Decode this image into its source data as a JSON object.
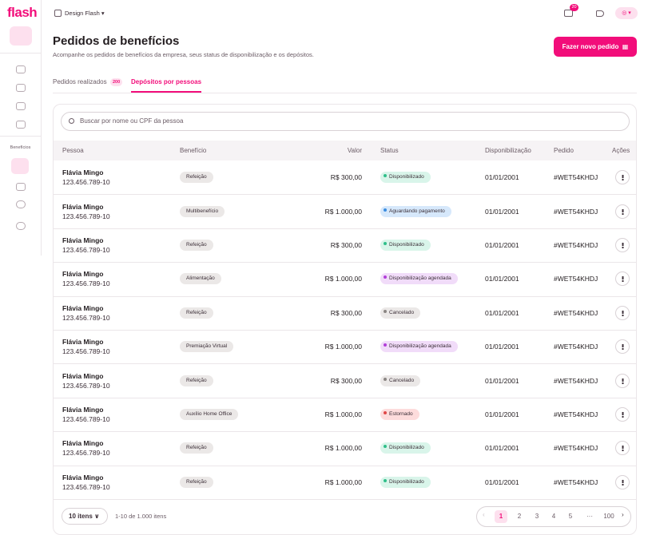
{
  "sidebar": {
    "logo": "flash",
    "section": "Benefícios"
  },
  "topbar": {
    "workspace": "Design Flash",
    "notifications": "20"
  },
  "header": {
    "title": "Pedidos de benefícios",
    "subtitle": "Acompanhe os pedidos de benefícios da empresa, seus status de disponibilização e os depósitos.",
    "button": "Fazer novo pedido"
  },
  "tabs": [
    {
      "label": "Pedidos realizados",
      "badge": "200",
      "active": false
    },
    {
      "label": "Depósitos por pessoas",
      "active": true
    }
  ],
  "search": {
    "placeholder": "Buscar por nome ou CPF da pessoa"
  },
  "table": {
    "columns": [
      "Pessoa",
      "Benefício",
      "Valor",
      "Status",
      "Disponibilização",
      "Pedido",
      "Ações"
    ],
    "rows": [
      {
        "name": "Flávia Mingo",
        "cpf": "123.456.789-10",
        "benefit": "Refeição",
        "value": "R$ 300,00",
        "status": "Disponibilizado",
        "status_bg": "#d9f5ea",
        "status_dot": "#2fbf8a",
        "date": "01/01/2001",
        "order": "#WET54KHDJ"
      },
      {
        "name": "Flávia Mingo",
        "cpf": "123.456.789-10",
        "benefit": "Multibenefício",
        "value": "R$ 1.000,00",
        "status": "Aguardando pagamento",
        "status_bg": "#d6e8fb",
        "status_dot": "#3b8de0",
        "date": "01/01/2001",
        "order": "#WET54KHDJ"
      },
      {
        "name": "Flávia Mingo",
        "cpf": "123.456.789-10",
        "benefit": "Refeição",
        "value": "R$ 300,00",
        "status": "Disponibilizado",
        "status_bg": "#d9f5ea",
        "status_dot": "#2fbf8a",
        "date": "01/01/2001",
        "order": "#WET54KHDJ"
      },
      {
        "name": "Flávia Mingo",
        "cpf": "123.456.789-10",
        "benefit": "Alimentação",
        "value": "R$ 1.000,00",
        "status": "Disponibilização agendada",
        "status_bg": "#f1dcf9",
        "status_dot": "#b23ed9",
        "date": "01/01/2001",
        "order": "#WET54KHDJ"
      },
      {
        "name": "Flávia Mingo",
        "cpf": "123.456.789-10",
        "benefit": "Refeição",
        "value": "R$ 300,00",
        "status": "Cancelado",
        "status_bg": "#ebe8e7",
        "status_dot": "#8a8583",
        "date": "01/01/2001",
        "order": "#WET54KHDJ"
      },
      {
        "name": "Flávia Mingo",
        "cpf": "123.456.789-10",
        "benefit": "Premiação Virtual",
        "value": "R$ 1.000,00",
        "status": "Disponibilização agendada",
        "status_bg": "#f1dcf9",
        "status_dot": "#b23ed9",
        "date": "01/01/2001",
        "order": "#WET54KHDJ"
      },
      {
        "name": "Flávia Mingo",
        "cpf": "123.456.789-10",
        "benefit": "Refeição",
        "value": "R$ 300,00",
        "status": "Cancelado",
        "status_bg": "#ebe8e7",
        "status_dot": "#8a8583",
        "date": "01/01/2001",
        "order": "#WET54KHDJ"
      },
      {
        "name": "Flávia Mingo",
        "cpf": "123.456.789-10",
        "benefit": "Auxílio Home Office",
        "value": "R$ 1.000,00",
        "status": "Estornado",
        "status_bg": "#fddcdc",
        "status_dot": "#e04848",
        "date": "01/01/2001",
        "order": "#WET54KHDJ"
      },
      {
        "name": "Flávia Mingo",
        "cpf": "123.456.789-10",
        "benefit": "Refeição",
        "value": "R$ 1.000,00",
        "status": "Disponibilizado",
        "status_bg": "#d9f5ea",
        "status_dot": "#2fbf8a",
        "date": "01/01/2001",
        "order": "#WET54KHDJ"
      },
      {
        "name": "Flávia Mingo",
        "cpf": "123.456.789-10",
        "benefit": "Refeição",
        "value": "R$ 1.000,00",
        "status": "Disponibilizado",
        "status_bg": "#d9f5ea",
        "status_dot": "#2fbf8a",
        "date": "01/01/2001",
        "order": "#WET54KHDJ"
      }
    ]
  },
  "footer": {
    "page_size": "10 itens",
    "range": "1-10 de 1.000 itens",
    "pages": [
      "1",
      "2",
      "3",
      "4",
      "5",
      "···",
      "100"
    ],
    "current_page": 0
  }
}
